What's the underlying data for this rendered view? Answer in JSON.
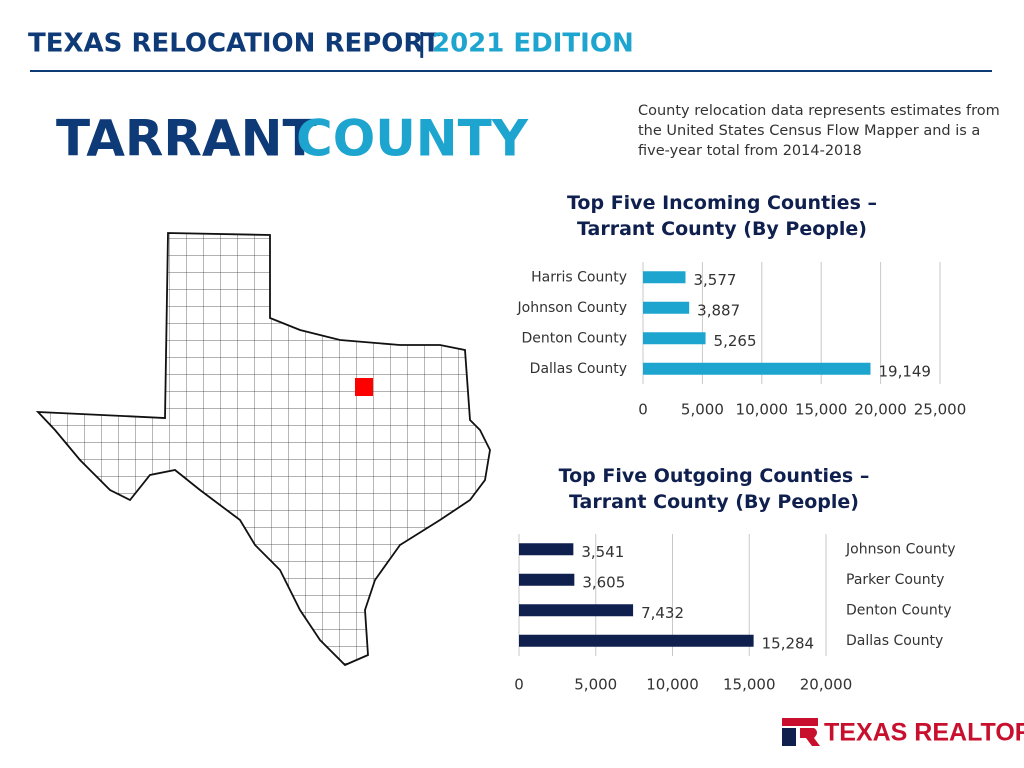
{
  "header": {
    "title": "TEXAS RELOCATION REPORT",
    "separator": "|",
    "edition": "2021 EDITION"
  },
  "county": {
    "name": "TARRANT",
    "word": "COUNTY"
  },
  "note": "County relocation data represents estimates from the United States Census Flow Mapper and is a five-year total from 2014-2018",
  "logo": "TEXAS REALTORS",
  "chart_data": [
    {
      "type": "bar",
      "title": "Top Five Incoming Counties – Tarrant County (By People)",
      "categories": [
        "Harris County",
        "Johnson County",
        "Denton County",
        "Dallas County"
      ],
      "values": [
        3577,
        3887,
        5265,
        19149
      ],
      "value_labels": [
        "3,577",
        "3,887",
        "5,265",
        "19,149"
      ],
      "color": "#1ea5cf",
      "xlim": [
        0,
        25000
      ],
      "xticks": [
        0,
        {
          "value": 5000,
          "label": "5,000"
        },
        {
          "value": 10000,
          "label": "10,000"
        },
        {
          "value": 15000,
          "label": "15,000"
        },
        {
          "value": 20000,
          "label": "20,000"
        },
        {
          "value": 25000,
          "label": "25,000"
        }
      ],
      "grid": true
    },
    {
      "type": "bar",
      "title": "Top Five Outgoing Counties – Tarrant County (By People)",
      "categories": [
        "Johnson County",
        "Parker County",
        "Denton County",
        "Dallas County"
      ],
      "values": [
        3541,
        3605,
        7432,
        15284
      ],
      "value_labels": [
        "3,541",
        "3,605",
        "7,432",
        "15,284"
      ],
      "color": "#0f1f4e",
      "xlim": [
        0,
        20000
      ],
      "xticks": [
        0,
        {
          "value": 5000,
          "label": "5,000"
        },
        {
          "value": 10000,
          "label": "10,000"
        },
        {
          "value": 15000,
          "label": "15,000"
        },
        {
          "value": 20000,
          "label": "20,000"
        }
      ],
      "grid": true
    }
  ]
}
